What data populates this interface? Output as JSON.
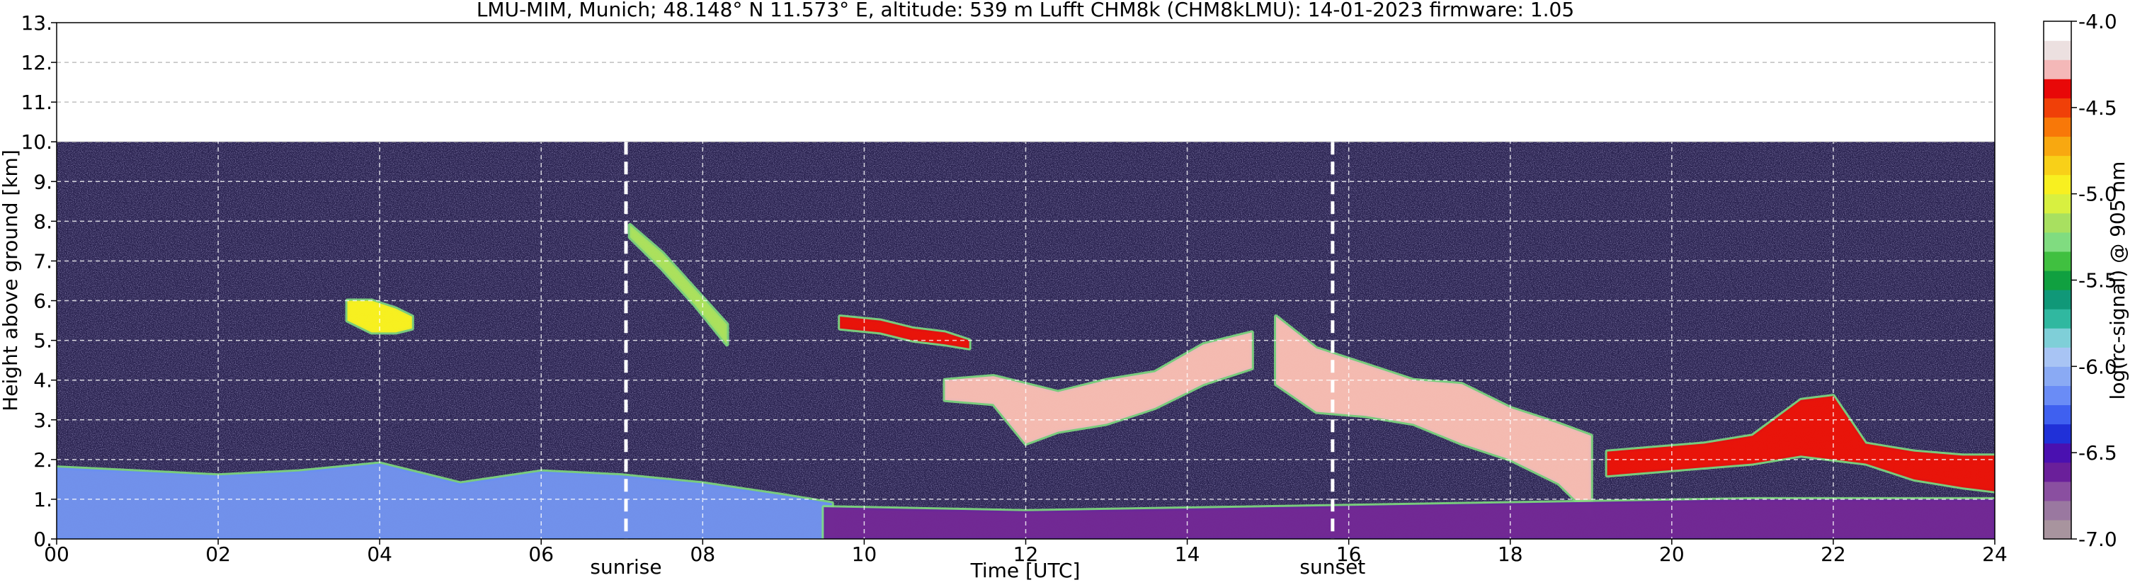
{
  "chart_data": {
    "type": "heatmap",
    "title": "LMU-MIM, Munich; 48.148° N 11.573° E, altitude: 539 m    Lufft CHM8k (CHM8kLMU): 14-01-2023    firmware: 1.05",
    "xlabel": "Time [UTC]",
    "ylabel": "Height above ground [km]",
    "xlim": [
      0,
      24
    ],
    "ylim": [
      0,
      13
    ],
    "x_tick_labels": [
      "00",
      "02",
      "04",
      "06",
      "08",
      "10",
      "12",
      "14",
      "16",
      "18",
      "20",
      "22",
      "24"
    ],
    "x_tick_values": [
      0,
      2,
      4,
      6,
      8,
      10,
      12,
      14,
      16,
      18,
      20,
      22,
      24
    ],
    "y_tick_labels": [
      "0.",
      "1.",
      "2.",
      "3.",
      "4.",
      "5.",
      "6.",
      "7.",
      "8.",
      "9.",
      "10.",
      "11.",
      "12.",
      "13."
    ],
    "y_tick_values": [
      0,
      1,
      2,
      3,
      4,
      5,
      6,
      7,
      8,
      9,
      10,
      11,
      12,
      13
    ],
    "grid": true,
    "data_top_km": 10,
    "annotations": [
      {
        "label": "sunrise",
        "x": 7.05
      },
      {
        "label": "sunset",
        "x": 15.8
      }
    ],
    "colorbar": {
      "label": "log(rc-signal) @ 905 nm",
      "range": [
        -7.0,
        -4.0
      ],
      "tick_labels": [
        "-4.0",
        "-4.5",
        "-5.0",
        "-5.5",
        "-6.0",
        "-6.5",
        "-7.0"
      ],
      "tick_values": [
        -4.0,
        -4.5,
        -5.0,
        -5.5,
        -6.0,
        -6.5,
        -7.0
      ],
      "colors": [
        "#a8949e",
        "#9a78a0",
        "#8a4fa0",
        "#6a1f9a",
        "#4a10b0",
        "#2030d8",
        "#3f60f0",
        "#6a8cf6",
        "#8aaaf4",
        "#a8c4f4",
        "#7fcfd8",
        "#30b8a0",
        "#109878",
        "#10a040",
        "#40c040",
        "#80dc80",
        "#a8e060",
        "#d8f040",
        "#f8f020",
        "#f8d018",
        "#f8a810",
        "#f87808",
        "#f04008",
        "#e80808",
        "#f4b8b8",
        "#ece0e0",
        "#ffffff"
      ]
    },
    "features": [
      {
        "name": "cloud-11-14",
        "x": [
          11.0,
          11.6,
          12.0,
          12.4,
          13.0,
          13.6,
          14.2,
          14.8
        ],
        "top": [
          4.0,
          4.1,
          3.9,
          3.7,
          4.0,
          4.2,
          4.9,
          5.2
        ],
        "bottom": [
          3.5,
          3.4,
          2.4,
          2.7,
          2.9,
          3.3,
          3.9,
          4.3
        ],
        "level": -4.3
      },
      {
        "name": "cloud-15-19",
        "x": [
          15.1,
          15.6,
          16.2,
          16.8,
          17.4,
          18.0,
          18.6,
          19.0
        ],
        "top": [
          5.6,
          4.8,
          4.4,
          4.0,
          3.9,
          3.3,
          2.9,
          2.6
        ],
        "bottom": [
          3.9,
          3.2,
          3.1,
          2.9,
          2.4,
          2.0,
          1.4,
          0.6
        ],
        "level": -4.3
      },
      {
        "name": "cloud-19-24",
        "x": [
          19.2,
          19.8,
          20.4,
          21.0,
          21.6,
          22.0,
          22.4,
          23.0,
          23.6,
          24.0
        ],
        "top": [
          2.2,
          2.3,
          2.4,
          2.6,
          3.5,
          3.6,
          2.4,
          2.2,
          2.1,
          2.1
        ],
        "bottom": [
          1.6,
          1.7,
          1.8,
          1.9,
          2.1,
          2.0,
          1.9,
          1.5,
          1.3,
          1.2
        ],
        "level": -4.4
      },
      {
        "name": "cloud-10-11",
        "x": [
          9.7,
          10.2,
          10.6,
          11.0,
          11.3
        ],
        "top": [
          5.6,
          5.5,
          5.3,
          5.2,
          5.0
        ],
        "bottom": [
          5.3,
          5.2,
          5.0,
          4.9,
          4.8
        ],
        "level": -4.4
      },
      {
        "name": "aerosol-layer",
        "x": [
          0.0,
          1.0,
          2.0,
          3.0,
          4.0,
          5.0,
          6.0,
          7.0,
          8.0,
          9.0,
          9.6
        ],
        "top": [
          1.8,
          1.7,
          1.6,
          1.7,
          1.9,
          1.4,
          1.7,
          1.6,
          1.4,
          1.1,
          0.9
        ],
        "bottom": [
          0.0,
          0.0,
          0.0,
          0.0,
          0.0,
          0.0,
          0.0,
          0.0,
          0.0,
          0.0,
          0.0
        ],
        "level": -6.2
      },
      {
        "name": "boundary-layer",
        "x": [
          9.5,
          12.0,
          15.0,
          18.0,
          21.0,
          24.0
        ],
        "top": [
          0.8,
          0.7,
          0.8,
          0.9,
          1.0,
          1.0
        ],
        "bottom": [
          0.0,
          0.0,
          0.0,
          0.0,
          0.0,
          0.0
        ],
        "level": -6.6
      },
      {
        "name": "cirrus-7-9",
        "x": [
          7.1,
          7.5,
          7.9,
          8.3
        ],
        "top": [
          7.9,
          7.2,
          6.3,
          5.4
        ],
        "bottom": [
          7.6,
          6.8,
          5.9,
          4.9
        ],
        "level": -5.2
      },
      {
        "name": "cloud-4",
        "x": [
          3.6,
          3.9,
          4.2,
          4.4
        ],
        "top": [
          6.0,
          6.0,
          5.8,
          5.6
        ],
        "bottom": [
          5.5,
          5.2,
          5.2,
          5.3
        ],
        "level": -5.0
      }
    ]
  }
}
